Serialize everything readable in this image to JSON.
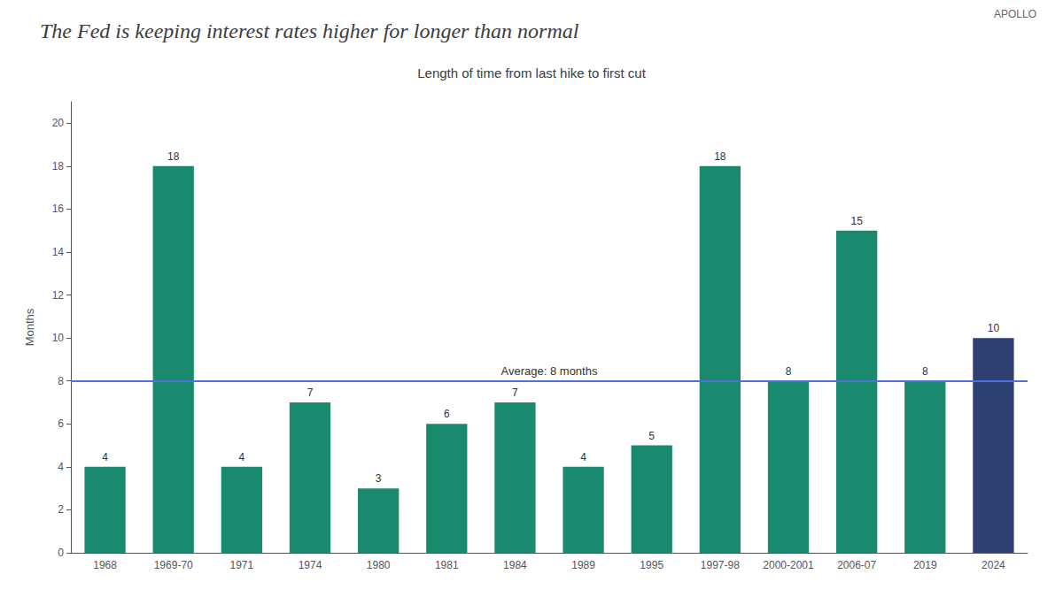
{
  "chart_data": {
    "type": "bar",
    "title": "The Fed is keeping interest rates higher for longer than normal",
    "subtitle": "Length of time from last hike to first cut",
    "watermark": "APOLLO",
    "ylabel": "Months",
    "categories": [
      "1968",
      "1969-70",
      "1971",
      "1974",
      "1980",
      "1981",
      "1984",
      "1989",
      "1995",
      "1997-98",
      "2000-2001",
      "2006-07",
      "2019",
      "2024"
    ],
    "values": [
      4,
      18,
      4,
      7,
      3,
      6,
      7,
      4,
      5,
      18,
      8,
      15,
      8,
      10
    ],
    "colors": [
      "#1a8a6e",
      "#1a8a6e",
      "#1a8a6e",
      "#1a8a6e",
      "#1a8a6e",
      "#1a8a6e",
      "#1a8a6e",
      "#1a8a6e",
      "#1a8a6e",
      "#1a8a6e",
      "#1a8a6e",
      "#1a8a6e",
      "#1a8a6e",
      "#2e4070"
    ],
    "average": 8,
    "average_label": "Average: 8 months",
    "ylim": [
      0,
      21
    ],
    "yticks": [
      0,
      2,
      4,
      6,
      8,
      10,
      12,
      14,
      16,
      18,
      20
    ],
    "data_labels": true,
    "grid": false
  }
}
